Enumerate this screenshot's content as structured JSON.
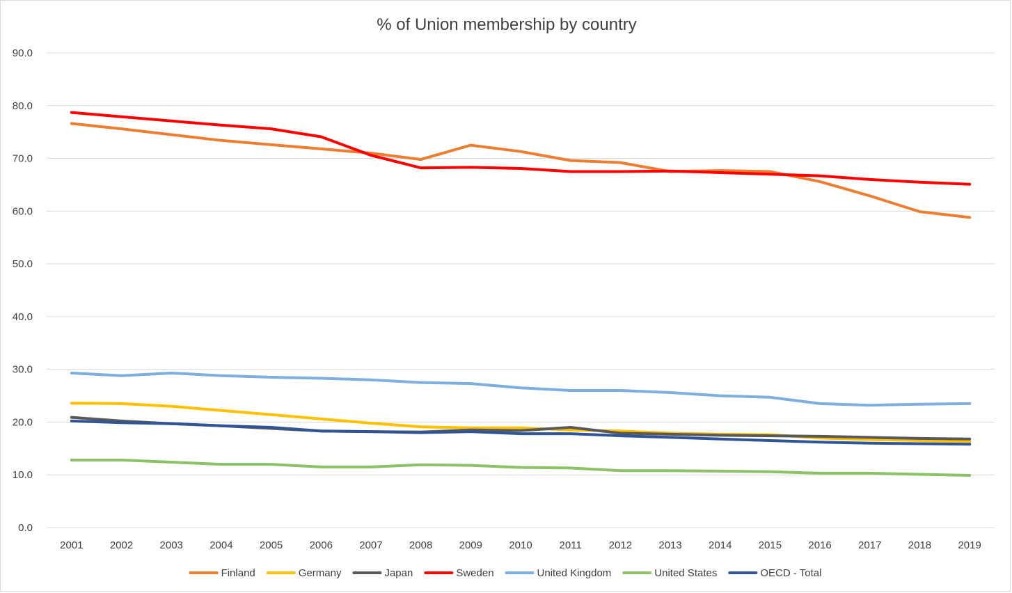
{
  "chart_data": {
    "type": "line",
    "title": "% of Union membership by country",
    "xlabel": "",
    "ylabel": "",
    "ylim": [
      0,
      90
    ],
    "y_ticks": [
      "0.0",
      "10.0",
      "20.0",
      "30.0",
      "40.0",
      "50.0",
      "60.0",
      "70.0",
      "80.0",
      "90.0"
    ],
    "grid": true,
    "legend_position": "bottom",
    "categories": [
      "2001",
      "2002",
      "2003",
      "2004",
      "2005",
      "2006",
      "2007",
      "2008",
      "2009",
      "2010",
      "2011",
      "2012",
      "2013",
      "2014",
      "2015",
      "2016",
      "2017",
      "2018",
      "2019"
    ],
    "series": [
      {
        "name": "Finland",
        "color": "#ED7D31",
        "values": [
          76.6,
          75.6,
          74.5,
          73.4,
          72.6,
          71.8,
          71.0,
          69.8,
          72.5,
          71.3,
          69.6,
          69.2,
          67.5,
          67.7,
          67.5,
          65.6,
          62.9,
          59.9,
          58.8
        ]
      },
      {
        "name": "Germany",
        "color": "#FFC000",
        "values": [
          23.6,
          23.5,
          23.0,
          22.2,
          21.4,
          20.6,
          19.8,
          19.1,
          18.9,
          18.9,
          18.5,
          18.3,
          17.9,
          17.7,
          17.6,
          17.0,
          16.7,
          16.5,
          16.3
        ]
      },
      {
        "name": "Japan",
        "color": "#595959",
        "values": [
          20.9,
          20.2,
          19.7,
          19.3,
          18.8,
          18.3,
          18.2,
          18.1,
          18.5,
          18.4,
          19.0,
          17.9,
          17.7,
          17.5,
          17.4,
          17.3,
          17.1,
          16.9,
          16.8
        ]
      },
      {
        "name": "Sweden",
        "color": "#FF0000",
        "values": [
          78.7,
          77.9,
          77.1,
          76.3,
          75.6,
          74.1,
          70.6,
          68.2,
          68.3,
          68.1,
          67.5,
          67.5,
          67.6,
          67.3,
          67.0,
          66.7,
          66.0,
          65.5,
          65.1
        ]
      },
      {
        "name": "United Kingdom",
        "color": "#7CAFDD",
        "values": [
          29.3,
          28.8,
          29.3,
          28.8,
          28.5,
          28.3,
          28.0,
          27.5,
          27.3,
          26.5,
          26.0,
          26.0,
          25.6,
          25.0,
          24.7,
          23.5,
          23.2,
          23.4,
          23.5
        ]
      },
      {
        "name": "United States",
        "color": "#8BC266",
        "values": [
          12.8,
          12.8,
          12.4,
          12.0,
          12.0,
          11.5,
          11.5,
          11.9,
          11.8,
          11.4,
          11.3,
          10.8,
          10.8,
          10.7,
          10.6,
          10.3,
          10.3,
          10.1,
          9.9
        ]
      },
      {
        "name": "OECD - Total",
        "color": "#2F5597",
        "values": [
          20.2,
          19.9,
          19.7,
          19.3,
          19.0,
          18.3,
          18.2,
          18.0,
          18.2,
          17.8,
          17.8,
          17.4,
          17.1,
          16.8,
          16.5,
          16.2,
          16.0,
          15.9,
          15.8
        ]
      }
    ]
  }
}
